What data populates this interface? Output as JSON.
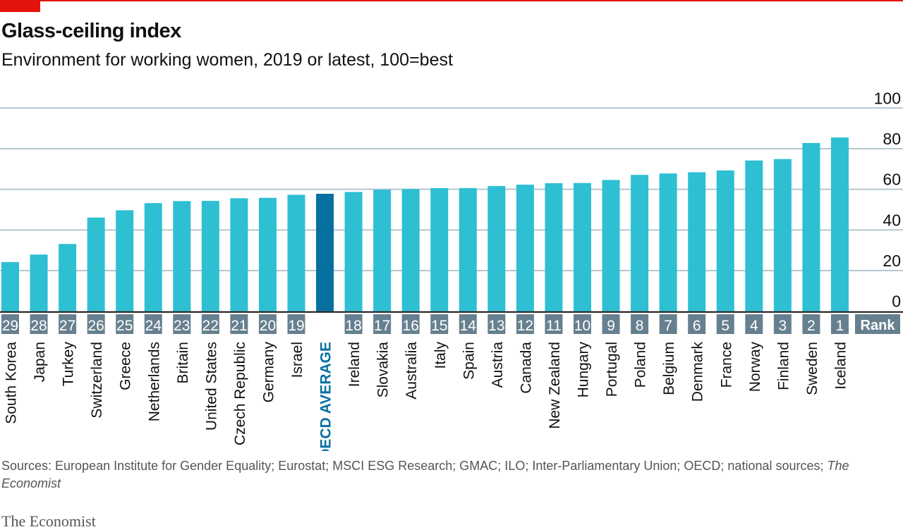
{
  "header": {
    "title": "Glass-ceiling index",
    "subtitle": "Environment for working women, 2019 or latest, 100=best"
  },
  "footer": {
    "sources": "Sources: European Institute for Gender Equality; Eurostat; MSCI ESG Research; GMAC; ILO; Inter-Parliamentary Union; OECD; national sources;",
    "sources_italic": "The Economist",
    "brand": "The Economist"
  },
  "colors": {
    "bar": "#2ebfd3",
    "highlight": "#086fa1",
    "rank_box": "#67808f",
    "grid": "#b7c6cf",
    "accent": "#e3120b"
  },
  "chart_data": {
    "type": "bar",
    "title": "Glass-ceiling index",
    "ylabel": "",
    "ylim": [
      0,
      100
    ],
    "yticks": [
      0,
      20,
      40,
      60,
      80,
      100
    ],
    "grid": true,
    "rank_header": "Rank",
    "categories": [
      "South Korea",
      "Japan",
      "Turkey",
      "Switzerland",
      "Greece",
      "Netherlands",
      "Britain",
      "United States",
      "Czech Republic",
      "Germany",
      "Israel",
      "OECD AVERAGE",
      "Ireland",
      "Slovakia",
      "Australia",
      "Italy",
      "Spain",
      "Austria",
      "Canada",
      "New Zealand",
      "Hungary",
      "Portugal",
      "Poland",
      "Belgium",
      "Denmark",
      "France",
      "Norway",
      "Finland",
      "Sweden",
      "Iceland"
    ],
    "ranks": [
      "29",
      "28",
      "27",
      "26",
      "25",
      "24",
      "23",
      "22",
      "21",
      "20",
      "19",
      "",
      "18",
      "17",
      "16",
      "15",
      "14",
      "13",
      "12",
      "11",
      "10",
      "9",
      "8",
      "7",
      "6",
      "5",
      "4",
      "3",
      "2",
      "1"
    ],
    "values": [
      24.2,
      27.9,
      33.1,
      46.1,
      49.7,
      53.2,
      54.2,
      54.3,
      55.6,
      55.8,
      57.3,
      57.8,
      58.7,
      59.8,
      60.1,
      60.6,
      60.6,
      61.6,
      62.3,
      63.0,
      63.1,
      64.6,
      67.1,
      67.8,
      68.4,
      69.3,
      74.2,
      74.9,
      82.8,
      85.5
    ],
    "highlight": "OECD AVERAGE"
  }
}
